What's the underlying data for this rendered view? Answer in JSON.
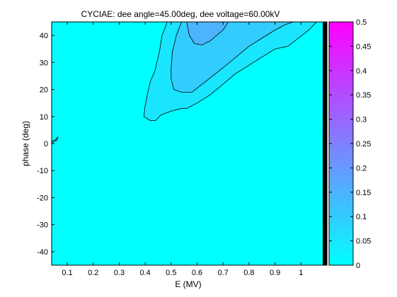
{
  "chart_data": {
    "type": "heatmap",
    "plot_type": "filled-contour",
    "title": "CYCIAE: dee angle=45.00deg, dee voltage=60.00kV",
    "xlabel": "E (MV)",
    "ylabel": "phase (deg)",
    "xlim": [
      0.04,
      1.1
    ],
    "ylim": [
      -45,
      45
    ],
    "x_ticks": [
      "0.1",
      "0.2",
      "0.3",
      "0.4",
      "0.5",
      "0.6",
      "0.7",
      "0.8",
      "0.9",
      "1"
    ],
    "y_ticks": [
      "-40",
      "-30",
      "-20",
      "-10",
      "0",
      "10",
      "20",
      "30",
      "40"
    ],
    "grid": false,
    "colorbar": {
      "range": [
        0,
        0.5
      ],
      "ticks": [
        "0",
        "0.05",
        "0.1",
        "0.15",
        "0.2",
        "0.25",
        "0.3",
        "0.35",
        "0.4",
        "0.45",
        "0.5"
      ],
      "colormap": "cool",
      "color_low": "#00ffff",
      "color_high": "#ff00ff"
    },
    "background_color": "#00ffff",
    "contour_levels": [
      {
        "level": 0.05,
        "fill_color": "#1ae5ff",
        "polygon": [
          [
            0.485,
            45
          ],
          [
            0.465,
            40
          ],
          [
            0.455,
            34
          ],
          [
            0.445,
            30
          ],
          [
            0.438,
            27
          ],
          [
            0.42,
            23
          ],
          [
            0.41,
            19
          ],
          [
            0.4,
            14
          ],
          [
            0.395,
            10
          ],
          [
            0.42,
            8.5
          ],
          [
            0.44,
            8.5
          ],
          [
            0.46,
            10.5
          ],
          [
            0.5,
            12
          ],
          [
            0.54,
            13
          ],
          [
            0.56,
            13
          ],
          [
            0.6,
            15
          ],
          [
            0.65,
            18
          ],
          [
            0.7,
            22
          ],
          [
            0.75,
            26
          ],
          [
            0.8,
            29
          ],
          [
            0.85,
            32
          ],
          [
            0.9,
            35
          ],
          [
            0.95,
            36
          ],
          [
            0.99,
            39
          ],
          [
            1.03,
            42
          ],
          [
            1.06,
            45
          ]
        ]
      },
      {
        "level": 0.1,
        "fill_color": "#33ccff",
        "polygon": [
          [
            0.54,
            45
          ],
          [
            0.52,
            40
          ],
          [
            0.505,
            34
          ],
          [
            0.5,
            28
          ],
          [
            0.5,
            24
          ],
          [
            0.51,
            20
          ],
          [
            0.54,
            19
          ],
          [
            0.58,
            19
          ],
          [
            0.62,
            22
          ],
          [
            0.66,
            25
          ],
          [
            0.7,
            28
          ],
          [
            0.75,
            32
          ],
          [
            0.8,
            36
          ],
          [
            0.85,
            39
          ],
          [
            0.9,
            42
          ],
          [
            0.94,
            44
          ],
          [
            0.97,
            45
          ]
        ]
      },
      {
        "level": 0.15,
        "fill_color": "#4cb3ff",
        "polygon": [
          [
            0.56,
            45
          ],
          [
            0.57,
            40
          ],
          [
            0.59,
            37
          ],
          [
            0.62,
            36.5
          ],
          [
            0.65,
            38
          ],
          [
            0.7,
            42
          ],
          [
            0.72,
            45
          ]
        ]
      },
      {
        "level": 0.05,
        "fill_color": "#1ae5ff",
        "polygon": [
          [
            0.04,
            0
          ],
          [
            0.055,
            1.5
          ],
          [
            0.065,
            2.5
          ],
          [
            0.058,
            1
          ],
          [
            0.04,
            1
          ]
        ]
      }
    ]
  }
}
